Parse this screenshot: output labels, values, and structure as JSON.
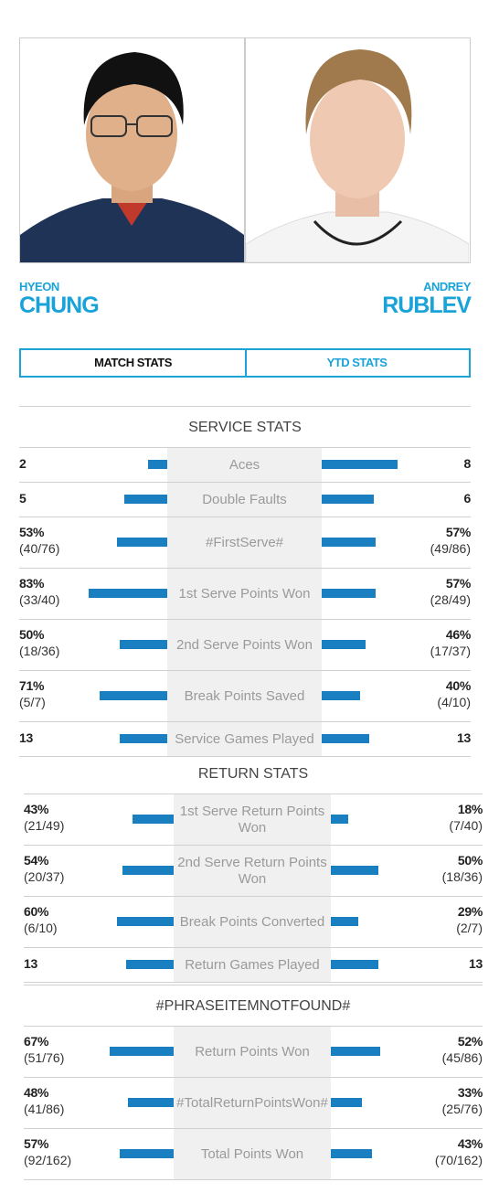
{
  "players": [
    {
      "first": "HYEON",
      "last": "CHUNG"
    },
    {
      "first": "ANDREY",
      "last": "RUBLEV"
    }
  ],
  "tabs": [
    "MATCH STATS",
    "YTD STATS"
  ],
  "sections": [
    {
      "title": "SERVICE STATS",
      "rows": [
        {
          "label": "Aces",
          "left": 2,
          "right": 8
        },
        {
          "label": "Double Faults",
          "left": 5,
          "right": 6
        },
        {
          "label": "#FirstServe#",
          "left": {
            "value": 53,
            "label": "53%",
            "detail": "(40/76)"
          },
          "right": {
            "value": 57,
            "label": "57%",
            "detail": "(49/86)"
          }
        },
        {
          "label": "1st Serve Points Won",
          "left": {
            "value": 83,
            "label": "83%",
            "detail": "(33/40)"
          },
          "right": {
            "value": 57,
            "label": "57%",
            "detail": "(28/49)"
          }
        },
        {
          "label": "2nd Serve Points Won",
          "left": {
            "value": 50,
            "label": "50%",
            "detail": "(18/36)"
          },
          "right": {
            "value": 46,
            "label": "46%",
            "detail": "(17/37)"
          }
        },
        {
          "label": "Break Points Saved",
          "left": {
            "value": 71,
            "label": "71%",
            "detail": "(5/7)"
          },
          "right": {
            "value": 40,
            "label": "40%",
            "detail": "(4/10)"
          }
        },
        {
          "label": "Service Games Played",
          "left": 13,
          "right": 13
        }
      ]
    },
    {
      "title": "RETURN STATS",
      "rows": [
        {
          "label": "1st Serve Return Points Won",
          "left": {
            "value": 43,
            "label": "43%",
            "detail": "(21/49)"
          },
          "right": {
            "value": 18,
            "label": "18%",
            "detail": "(7/40)"
          }
        },
        {
          "label": "2nd Serve Return Points Won",
          "left": {
            "value": 54,
            "label": "54%",
            "detail": "(20/37)"
          },
          "right": {
            "value": 50,
            "label": "50%",
            "detail": "(18/36)"
          }
        },
        {
          "label": "Break Points Converted",
          "left": {
            "value": 60,
            "label": "60%",
            "detail": "(6/10)"
          },
          "right": {
            "value": 29,
            "label": "29%",
            "detail": "(2/7)"
          }
        },
        {
          "label": "Return Games Played",
          "left": 13,
          "right": 13
        }
      ]
    },
    {
      "title": "#PHRASEITEMNOTFOUND#",
      "rows": [
        {
          "label": "Return Points Won",
          "left": {
            "value": 67,
            "label": "67%",
            "detail": "(51/76)"
          },
          "right": {
            "value": 52,
            "label": "52%",
            "detail": "(45/86)"
          }
        },
        {
          "label": "#TotalReturnPointsWon#",
          "left": {
            "value": 48,
            "label": "48%",
            "detail": "(41/86)"
          },
          "right": {
            "value": 33,
            "label": "33%",
            "detail": "(25/76)"
          }
        },
        {
          "label": "Total Points Won",
          "left": {
            "value": 57,
            "label": "57%",
            "detail": "(92/162)"
          },
          "right": {
            "value": 43,
            "label": "43%",
            "detail": "(70/162)"
          }
        }
      ]
    }
  ]
}
